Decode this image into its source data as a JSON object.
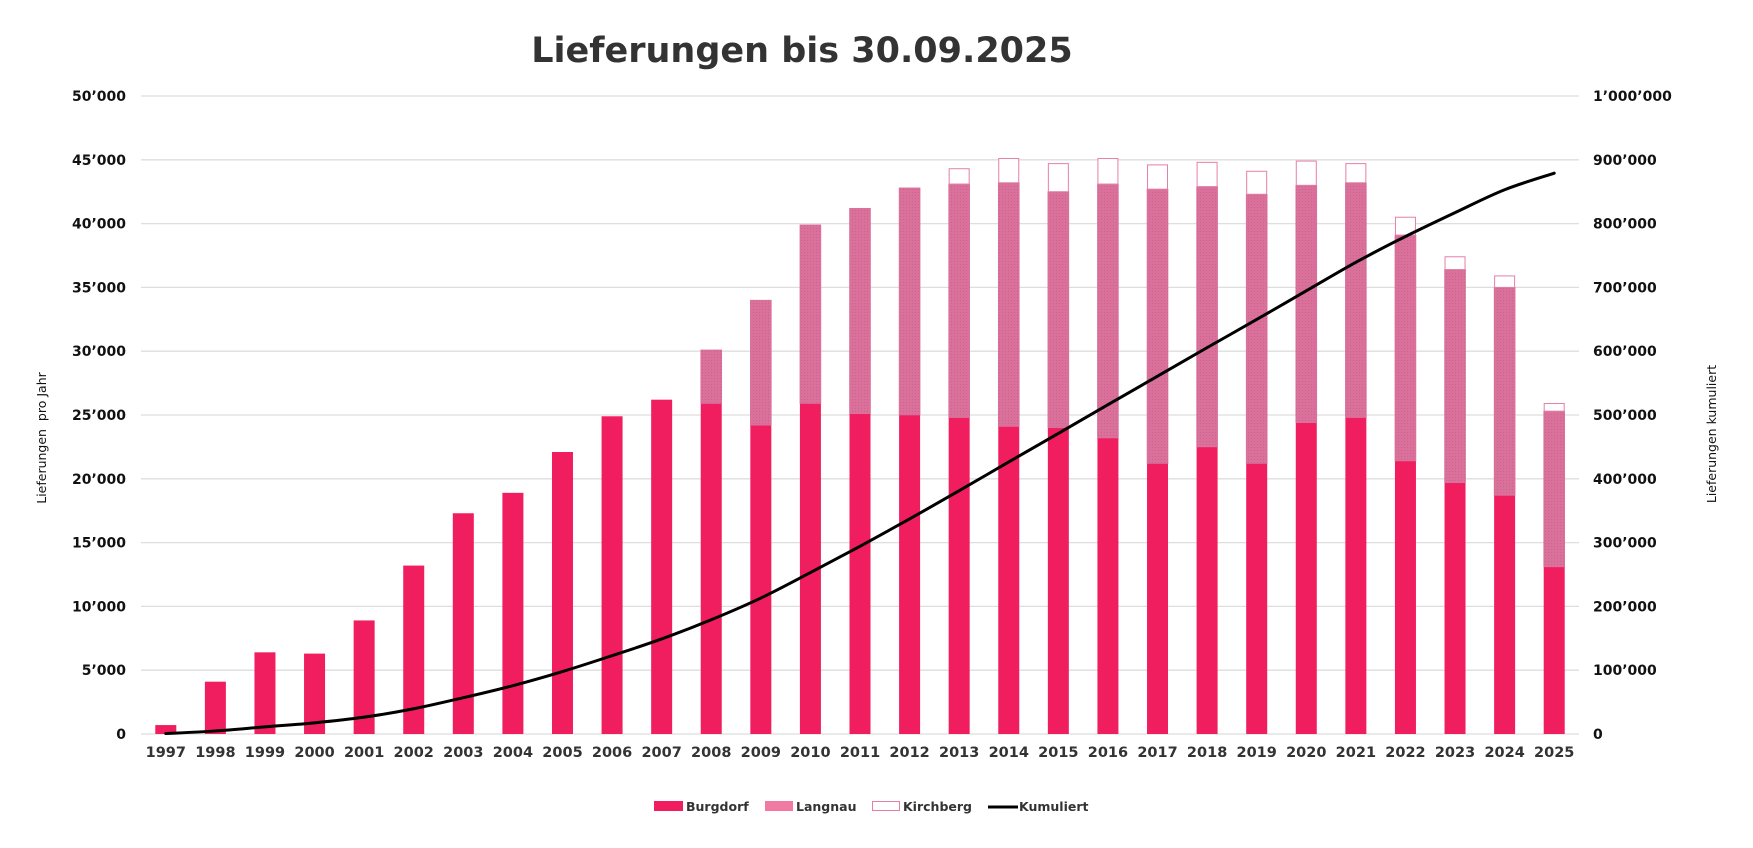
{
  "chart_data": {
    "type": "bar",
    "subtype": "stacked-bar-with-line",
    "title": "Lieferungen bis 30.09.2025",
    "xlabel": "",
    "ylabel": "Lieferungen  pro Jahr",
    "ylabel_right": "Lieferungen kumuliert",
    "ylim": [
      0,
      50000
    ],
    "ylim_right": [
      0,
      1000000
    ],
    "yticks": [
      0,
      5000,
      10000,
      15000,
      20000,
      25000,
      30000,
      35000,
      40000,
      45000,
      50000
    ],
    "ytick_labels": [
      "0",
      "5’000",
      "10’000",
      "15’000",
      "20’000",
      "25’000",
      "30’000",
      "35’000",
      "40’000",
      "45’000",
      "50’000"
    ],
    "yticks_right": [
      0,
      100000,
      200000,
      300000,
      400000,
      500000,
      600000,
      700000,
      800000,
      900000,
      1000000
    ],
    "ytick_labels_right": [
      "0",
      "100’000",
      "200’000",
      "300’000",
      "400’000",
      "500’000",
      "600’000",
      "700’000",
      "800’000",
      "900’000",
      "1’000’000"
    ],
    "grid": true,
    "legend_position": "bottom-center",
    "categories": [
      "1997",
      "1998",
      "1999",
      "2000",
      "2001",
      "2002",
      "2003",
      "2004",
      "2005",
      "2006",
      "2007",
      "2008",
      "2009",
      "2010",
      "2011",
      "2012",
      "2013",
      "2014",
      "2015",
      "2016",
      "2017",
      "2018",
      "2019",
      "2020",
      "2021",
      "2022",
      "2023",
      "2024",
      "2025"
    ],
    "series": [
      {
        "name": "Burgdorf",
        "type": "bar",
        "axis": "left",
        "color": "#f01e5f",
        "values": [
          700,
          4100,
          6400,
          6300,
          8900,
          13200,
          17300,
          18900,
          22100,
          24900,
          26200,
          25900,
          24200,
          25900,
          25100,
          25000,
          24800,
          24100,
          24000,
          23200,
          21200,
          22500,
          21200,
          24400,
          24800,
          21400,
          19700,
          18700,
          13100
        ]
      },
      {
        "name": "Langnau",
        "type": "bar",
        "axis": "left",
        "color": "#d9719b",
        "values": [
          0,
          0,
          0,
          0,
          0,
          0,
          0,
          0,
          0,
          0,
          0,
          4200,
          9800,
          14000,
          16100,
          17800,
          18300,
          19100,
          18500,
          19900,
          21500,
          20400,
          21100,
          18600,
          18400,
          17700,
          16700,
          16300,
          12200
        ]
      },
      {
        "name": "Kirchberg",
        "type": "bar",
        "axis": "left",
        "color": "#ffffff",
        "border_color": "#e47fa8",
        "values": [
          0,
          0,
          0,
          0,
          0,
          0,
          0,
          0,
          0,
          0,
          0,
          0,
          0,
          0,
          0,
          0,
          1200,
          1900,
          2200,
          2000,
          1900,
          1900,
          1800,
          1900,
          1500,
          1400,
          1000,
          900,
          600
        ]
      },
      {
        "name": "Kumuliert",
        "type": "line",
        "axis": "right",
        "color": "#000000",
        "values": [
          700,
          4800,
          11200,
          17500,
          26400,
          39600,
          56900,
          75800,
          97900,
          122800,
          149000,
          179100,
          213100,
          253000,
          294200,
          337000,
          381300,
          426400,
          471100,
          516200,
          560800,
          605600,
          649700,
          694600,
          739300,
          779800,
          817200,
          853100,
          879000
        ]
      }
    ]
  }
}
